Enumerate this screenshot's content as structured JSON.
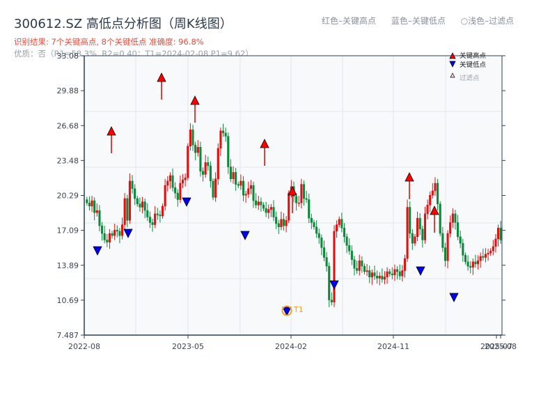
{
  "header": {
    "title": "300612.SZ 高低点分析图（周K线图）",
    "result_line": "识别结果: 7个关键高点, 8个关键低点   准确度: 96.8%",
    "quality_line": "优质：否（R1=58.3%, R2=0.40；T1=2024-02-08 P1=9.62）"
  },
  "top_legend": {
    "red": "红色–关键高点",
    "blue": "蓝色–关键低点",
    "light": "○浅色–过滤点"
  },
  "legend": {
    "high": "关键高点",
    "low": "关键低点",
    "filtered": "过滤点"
  },
  "annotation": {
    "t1_label": "T1"
  },
  "colors": {
    "up": "#e01010",
    "down": "#0a8a3a",
    "high_marker": "#ff0000",
    "low_marker": "#0000ee",
    "t1_ring": "#f5a020",
    "plot_bg": "#f7f9fb",
    "grid": "#e3e6ea",
    "axis": "#2c3e50"
  },
  "chart_data": {
    "type": "candlestick",
    "title": "300612.SZ 高低点分析图（周K线图）",
    "xlabel": "",
    "ylabel": "",
    "ylim": [
      7.487,
      33.08
    ],
    "yticks": [
      "33.08",
      "29.88",
      "26.68",
      "23.48",
      "20.29",
      "17.09",
      "13.89",
      "10.69",
      "7.487"
    ],
    "xticks": [
      "2022-08",
      "2023-05",
      "2024-02",
      "2024-11",
      "2025-07",
      "2025-08"
    ],
    "grid": true,
    "legend_position": "upper right",
    "key_highs": [
      {
        "approx_date": "2022-10",
        "price": 26.2
      },
      {
        "approx_date": "2023-02",
        "price": 31.0
      },
      {
        "approx_date": "2023-05",
        "price": 29.0
      },
      {
        "approx_date": "2023-12",
        "price": 24.9
      },
      {
        "approx_date": "2024-02",
        "price": 20.5
      },
      {
        "approx_date": "2024-11",
        "price": 21.9
      },
      {
        "approx_date": "2025-02",
        "price": 18.8
      }
    ],
    "key_lows": [
      {
        "approx_date": "2022-09",
        "price": 15.6
      },
      {
        "approx_date": "2022-12",
        "price": 17.1
      },
      {
        "approx_date": "2023-05",
        "price": 19.8
      },
      {
        "approx_date": "2023-09",
        "price": 16.9
      },
      {
        "approx_date": "2024-02",
        "price": 9.62,
        "label": "T1"
      },
      {
        "approx_date": "2024-06",
        "price": 12.3
      },
      {
        "approx_date": "2024-12",
        "price": 13.6
      },
      {
        "approx_date": "2025-03",
        "price": 11.2
      }
    ],
    "close_series_approx": [
      19.6,
      19.3,
      19.8,
      18.7,
      18.9,
      17.5,
      16.8,
      16.2,
      16.0,
      16.8,
      16.6,
      17.1,
      17.0,
      16.6,
      17.6,
      20.0,
      18.0,
      21.6,
      20.9,
      20.0,
      19.5,
      19.2,
      19.7,
      18.9,
      18.3,
      17.8,
      17.6,
      18.6,
      18.5,
      18.4,
      19.3,
      21.2,
      21.6,
      22.1,
      21.0,
      20.5,
      19.9,
      21.4,
      21.7,
      21.9,
      24.8,
      26.3,
      24.9,
      24.2,
      24.7,
      22.5,
      22.2,
      23.3,
      23.0,
      21.6,
      20.1,
      21.8,
      24.6,
      26.2,
      26.0,
      25.7,
      22.9,
      21.8,
      22.4,
      21.3,
      21.2,
      21.6,
      20.3,
      20.4,
      20.9,
      21.2,
      19.8,
      19.4,
      19.7,
      19.4,
      19.1,
      18.7,
      19.0,
      19.2,
      18.3,
      17.7,
      17.4,
      18.1,
      17.5,
      18.0,
      20.5,
      21.1,
      20.2,
      19.6,
      19.6,
      21.3,
      20.0,
      19.9,
      18.2,
      17.8,
      17.4,
      16.8,
      16.4,
      15.5,
      14.6,
      13.8,
      10.7,
      10.5,
      17.0,
      17.6,
      18.1,
      17.3,
      16.5,
      15.7,
      15.2,
      14.4,
      13.6,
      13.4,
      14.3,
      13.8,
      13.3,
      13.4,
      12.8,
      13.2,
      12.9,
      12.7,
      12.9,
      12.6,
      12.8,
      13.3,
      13.1,
      13.0,
      13.5,
      13.3,
      12.9,
      13.4,
      14.5,
      19.2,
      16.8,
      15.9,
      16.5,
      18.2,
      17.2,
      16.2,
      18.6,
      19.4,
      20.3,
      20.7,
      21.4,
      19.5,
      16.8,
      15.5,
      14.3,
      16.8,
      17.8,
      18.6,
      17.8,
      16.5,
      15.9,
      14.8,
      14.2,
      13.8,
      13.7,
      14.2,
      14.0,
      14.3,
      14.7,
      14.6,
      14.9,
      15.0,
      15.2,
      15.6,
      16.3,
      17.3,
      16.2
    ]
  }
}
